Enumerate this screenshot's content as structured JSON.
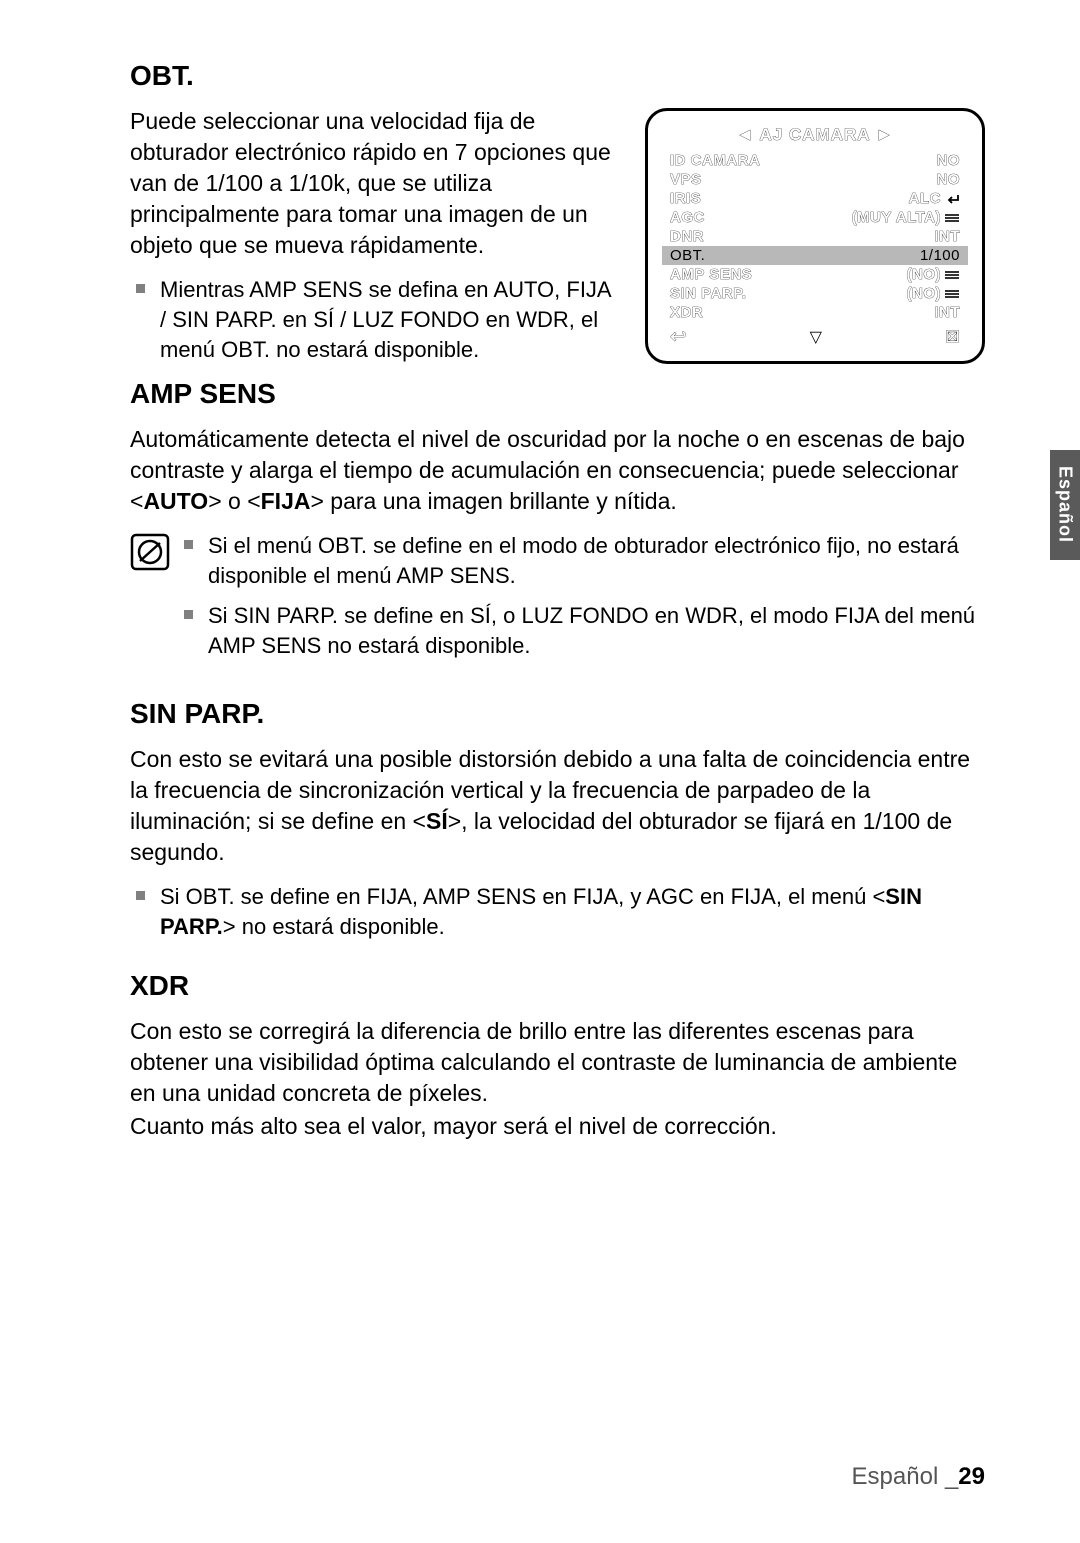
{
  "sections": {
    "obt": {
      "title": "OBT.",
      "para": "Puede seleccionar una velocidad fija de obturador electrónico rápido en 7 opciones que van de 1/100 a 1/10k, que se utiliza principalmente para tomar una imagen de un objeto que se mueva rápidamente.",
      "bullet1": "Mientras AMP SENS se defina en AUTO, FIJA / SIN PARP. en SÍ / LUZ FONDO en WDR, el menú OBT. no estará disponible."
    },
    "amp_sens": {
      "title": "AMP SENS",
      "para_pre": "Automáticamente detecta el nivel de oscuridad por la noche o en escenas de bajo contraste y alarga el tiempo de acumulación en consecuencia; puede seleccionar <",
      "auto": "AUTO",
      "mid": "> o <",
      "fija": "FIJA",
      "para_post": "> para una imagen brillante y nítida.",
      "note1": "Si el menú OBT. se define en el modo de obturador electrónico fijo, no estará disponible el menú AMP SENS.",
      "note2": "Si SIN PARP. se define en SÍ, o LUZ FONDO en WDR, el modo FIJA del menú AMP SENS no estará disponible."
    },
    "sin_parp": {
      "title": "SIN PARP.",
      "para_pre": "Con esto se evitará una posible distorsión debido a una falta de coincidencia entre la frecuencia de sincronización vertical y la frecuencia de parpadeo de la iluminación; si se define en <",
      "si": "SÍ",
      "para_post": ">, la velocidad del obturador se fijará en 1/100 de segundo.",
      "bullet_pre": "Si OBT. se define en FIJA, AMP SENS en FIJA, y AGC en FIJA, el menú <",
      "bullet_bold": "SIN PARP.",
      "bullet_post": "> no estará disponible."
    },
    "xdr": {
      "title": "XDR",
      "para1": "Con esto se corregirá la diferencia de brillo entre las diferentes escenas para obtener una visibilidad óptima calculando el contraste de luminancia de ambiente en una unidad concreta de píxeles.",
      "para2": "Cuanto más alto sea el valor, mayor será el nivel de corrección."
    }
  },
  "osd": {
    "title_left": "◄ AJ CAMARA ►",
    "rows": [
      {
        "label": "ID CAMARA",
        "val": "NO",
        "icon": "none"
      },
      {
        "label": "VPS",
        "val": "NO",
        "icon": "none"
      },
      {
        "label": "IRIS",
        "val": "ALC",
        "icon": "enter"
      },
      {
        "label": "AGC",
        "val": "(MUY ALTA)",
        "icon": "bars"
      },
      {
        "label": "DNR",
        "val": "INT",
        "icon": "none"
      },
      {
        "label": "OBT.",
        "val": "1/100",
        "icon": "none",
        "highlight": true
      },
      {
        "label": "AMP SENS",
        "val": "(NO)",
        "icon": "bars"
      },
      {
        "label": "SIN PARP.",
        "val": "(NO)",
        "icon": "bars"
      },
      {
        "label": "XDR",
        "val": "INT",
        "icon": "none"
      }
    ],
    "footer_back": "↩",
    "footer_down": "▽",
    "footer_close": "⊠"
  },
  "side_tab": "Español",
  "footer": {
    "lang": "Español _",
    "page": "29"
  }
}
